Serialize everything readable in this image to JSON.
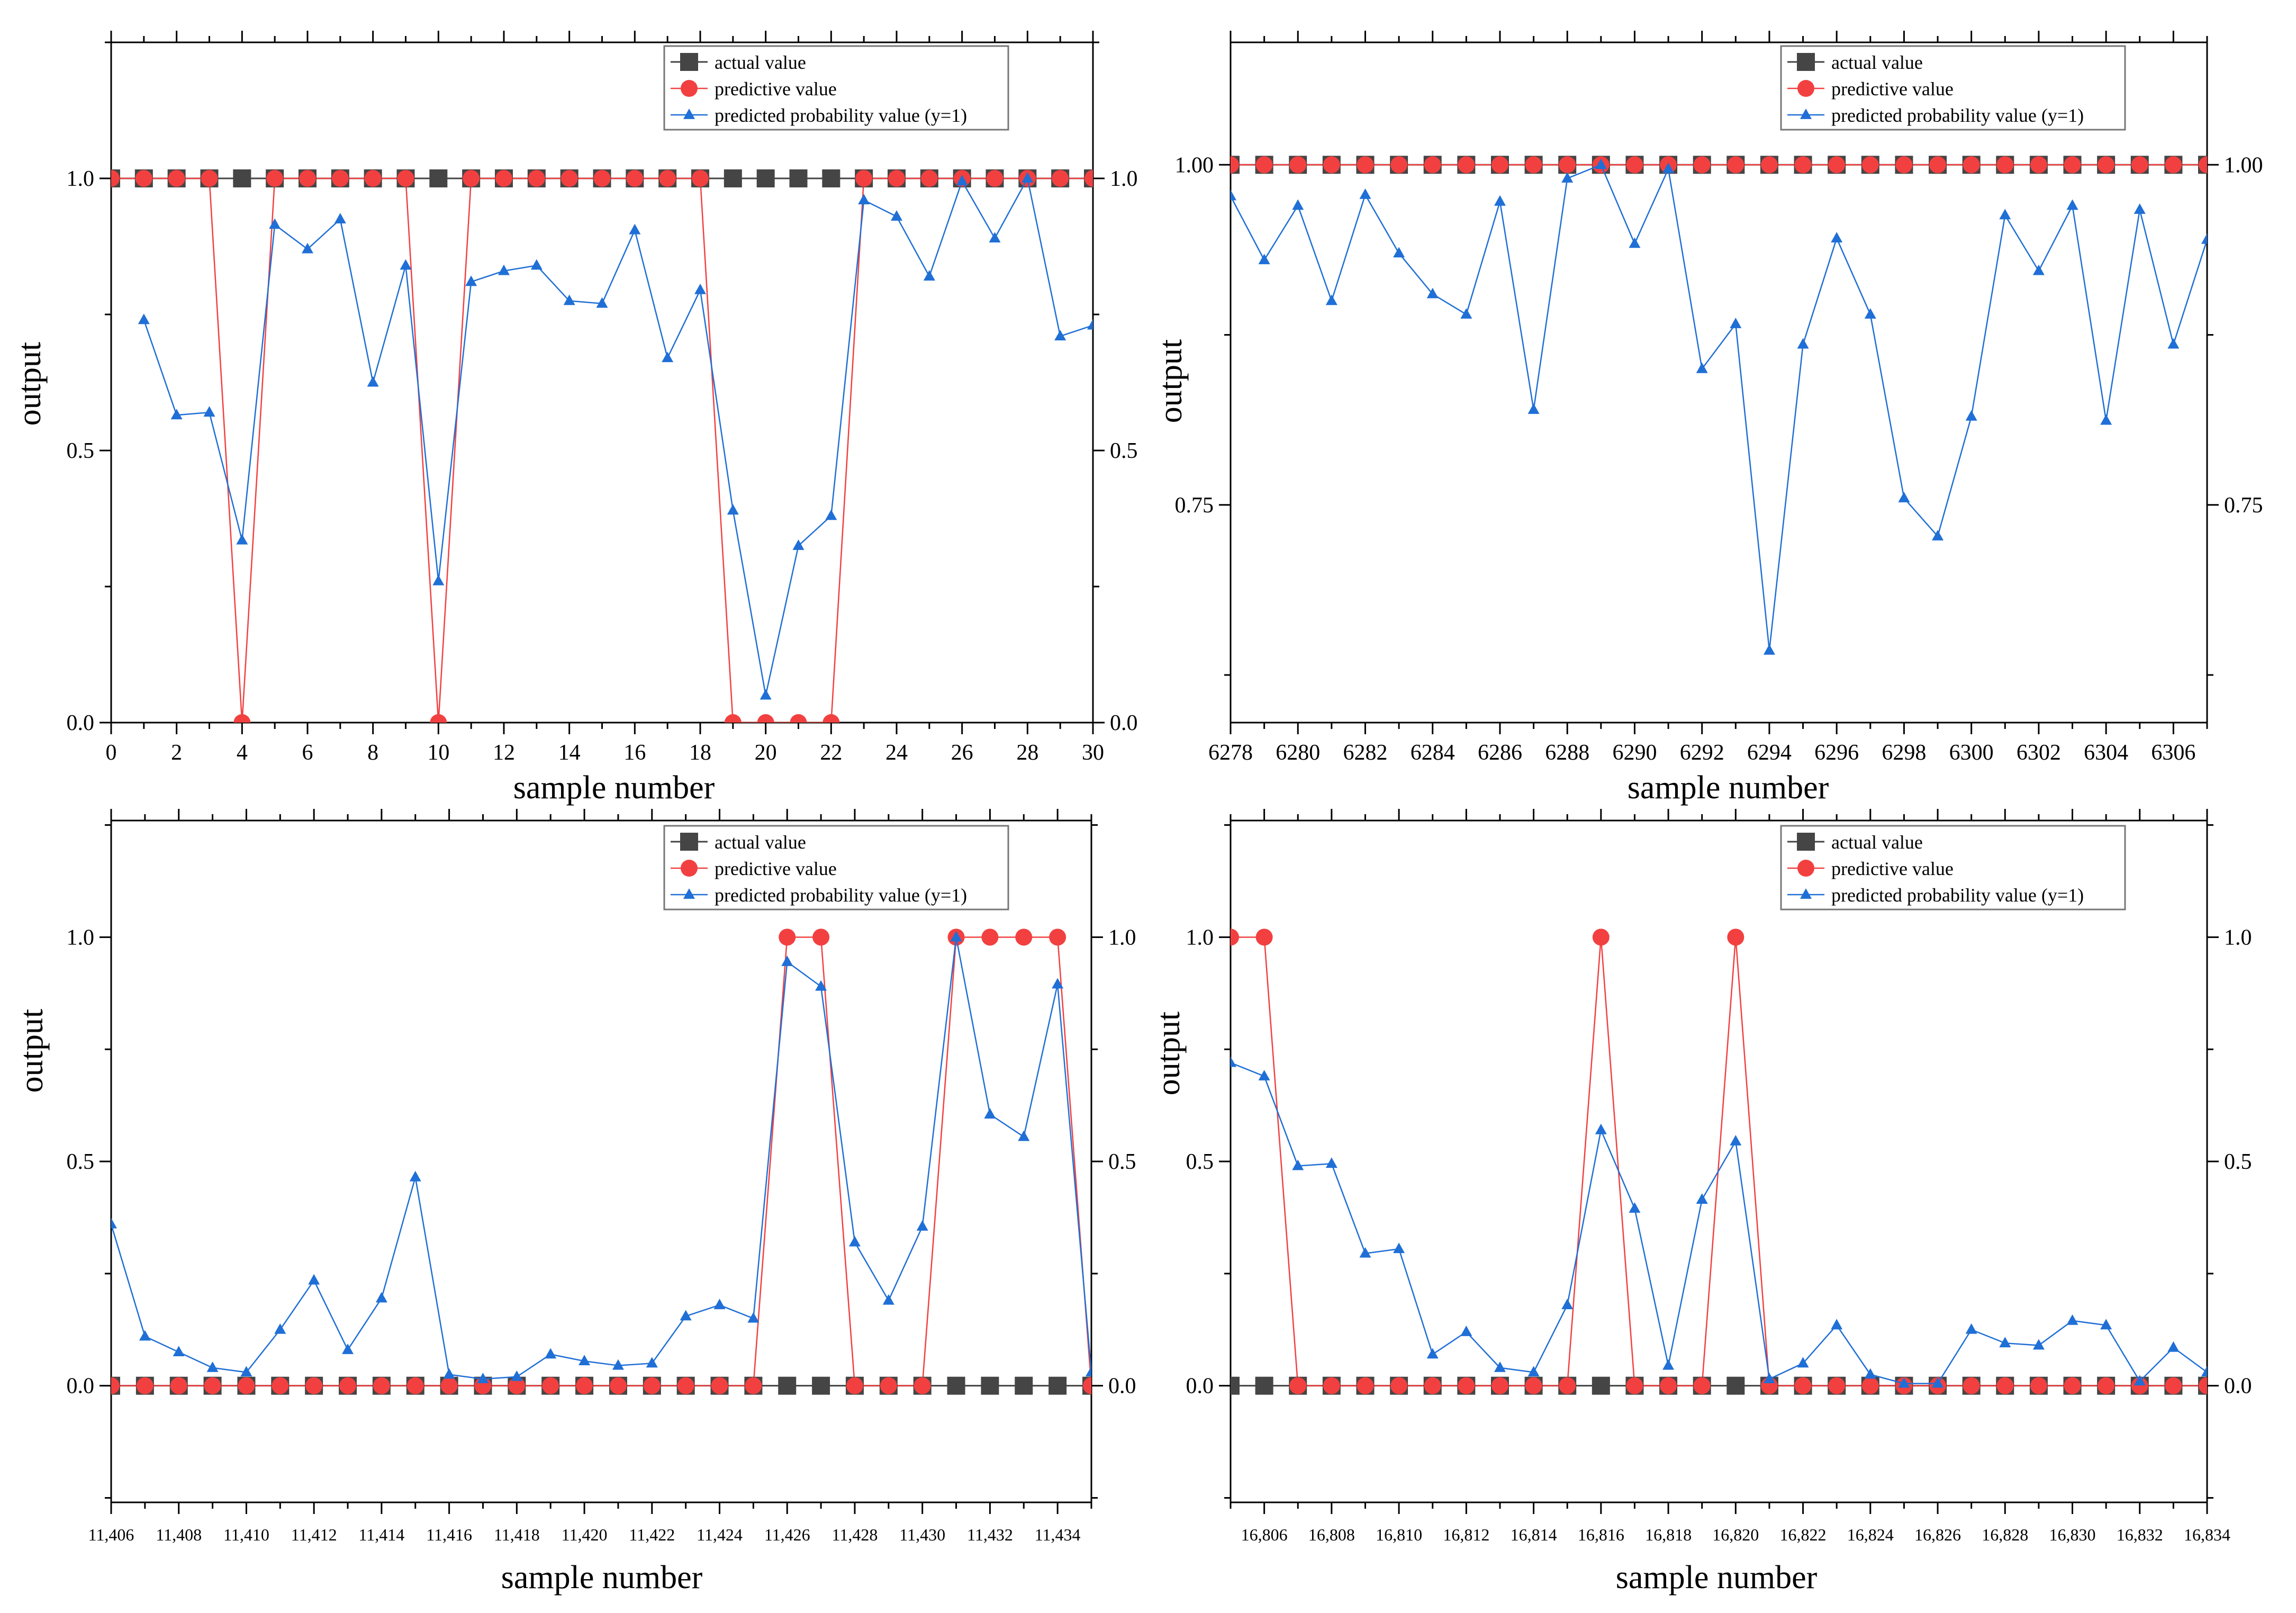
{
  "colors": {
    "actual": "#454545",
    "predictive": "#f24040",
    "probability": "#1f6fd6",
    "axis": "#000000"
  },
  "chart_data": [
    {
      "type": "line",
      "title": "",
      "xlabel": "sample number",
      "ylabel": "output",
      "x": [
        0,
        1,
        2,
        3,
        4,
        5,
        6,
        7,
        8,
        9,
        10,
        11,
        12,
        13,
        14,
        15,
        16,
        17,
        18,
        19,
        20,
        21,
        22,
        23,
        24,
        25,
        26,
        27,
        28,
        29,
        30
      ],
      "xlim": [
        0,
        30
      ],
      "ylim": [
        0,
        1.25
      ],
      "yticks": [
        0.0,
        0.5,
        1.0
      ],
      "ytick_labels": [
        "0.0",
        "0.5",
        "1.0"
      ],
      "xticks": [
        0,
        2,
        4,
        6,
        8,
        10,
        12,
        14,
        16,
        18,
        20,
        22,
        24,
        26,
        28,
        30
      ],
      "xtick_labels": [
        "0",
        "2",
        "4",
        "6",
        "8",
        "10",
        "12",
        "14",
        "16",
        "18",
        "20",
        "22",
        "24",
        "26",
        "28",
        "30"
      ],
      "legend": [
        "actual value",
        "predictive value",
        "predicted probability value (y=1)"
      ],
      "legend_position": "top-right",
      "series": [
        {
          "name": "actual value",
          "values": [
            1,
            1,
            1,
            1,
            1,
            1,
            1,
            1,
            1,
            1,
            1,
            1,
            1,
            1,
            1,
            1,
            1,
            1,
            1,
            1,
            1,
            1,
            1,
            1,
            1,
            1,
            1,
            1,
            1,
            1,
            1
          ]
        },
        {
          "name": "predictive value",
          "values": [
            1,
            1,
            1,
            1,
            0,
            1,
            1,
            1,
            1,
            1,
            0,
            1,
            1,
            1,
            1,
            1,
            1,
            1,
            1,
            0,
            0,
            0,
            0,
            1,
            1,
            1,
            1,
            1,
            1,
            1,
            1
          ]
        },
        {
          "name": "predicted probability value (y=1)",
          "values": [
            null,
            0.74,
            0.565,
            0.57,
            0.335,
            0.915,
            0.87,
            0.925,
            0.625,
            0.84,
            0.26,
            0.81,
            0.83,
            0.84,
            0.775,
            0.77,
            0.905,
            0.67,
            0.795,
            0.39,
            0.05,
            0.325,
            0.38,
            0.96,
            0.93,
            0.82,
            0.995,
            0.89,
            1.0,
            0.71,
            0.73
          ]
        }
      ]
    },
    {
      "type": "line",
      "title": "",
      "xlabel": "sample number",
      "ylabel": "output",
      "x": [
        6278,
        6279,
        6280,
        6281,
        6282,
        6283,
        6284,
        6285,
        6286,
        6287,
        6288,
        6289,
        6290,
        6291,
        6292,
        6293,
        6294,
        6295,
        6296,
        6297,
        6298,
        6299,
        6300,
        6301,
        6302,
        6303,
        6304,
        6305,
        6306,
        6307
      ],
      "xlim": [
        6278,
        6307
      ],
      "ylim": [
        0.59,
        1.09
      ],
      "yticks": [
        0.75,
        1.0
      ],
      "ytick_labels": [
        "0.75",
        "1.00"
      ],
      "xticks": [
        6278,
        6280,
        6282,
        6284,
        6286,
        6288,
        6290,
        6292,
        6294,
        6296,
        6298,
        6300,
        6302,
        6304,
        6306
      ],
      "xtick_labels": [
        "6278",
        "6280",
        "6282",
        "6284",
        "6286",
        "6288",
        "6290",
        "6292",
        "6294",
        "6296",
        "6298",
        "6300",
        "6302",
        "6304",
        "6306"
      ],
      "legend": [
        "actual value",
        "predictive value",
        "predicted probability value (y=1)"
      ],
      "legend_position": "top-right",
      "series": [
        {
          "name": "actual value",
          "values": [
            1,
            1,
            1,
            1,
            1,
            1,
            1,
            1,
            1,
            1,
            1,
            1,
            1,
            1,
            1,
            1,
            1,
            1,
            1,
            1,
            1,
            1,
            1,
            1,
            1,
            1,
            1,
            1,
            1,
            1
          ]
        },
        {
          "name": "predictive value",
          "values": [
            1,
            1,
            1,
            1,
            1,
            1,
            1,
            1,
            1,
            1,
            1,
            1,
            1,
            1,
            1,
            1,
            1,
            1,
            1,
            1,
            1,
            1,
            1,
            1,
            1,
            1,
            1,
            1,
            1,
            1
          ]
        },
        {
          "name": "predicted probability value (y=1)",
          "values": [
            0.977,
            0.93,
            0.97,
            0.9,
            0.978,
            0.935,
            0.905,
            0.89,
            0.973,
            0.82,
            0.99,
            1.0,
            0.942,
            0.997,
            0.85,
            0.883,
            0.643,
            0.868,
            0.946,
            0.89,
            0.755,
            0.727,
            0.815,
            0.963,
            0.922,
            0.97,
            0.812,
            0.967,
            0.868,
            0.945
          ]
        }
      ]
    },
    {
      "type": "line",
      "title": "",
      "xlabel": "sample number",
      "ylabel": "output",
      "x": [
        11406,
        11407,
        11408,
        11409,
        11410,
        11411,
        11412,
        11413,
        11414,
        11415,
        11416,
        11417,
        11418,
        11419,
        11420,
        11421,
        11422,
        11423,
        11424,
        11425,
        11426,
        11427,
        11428,
        11429,
        11430,
        11431,
        11432,
        11433,
        11434,
        11435
      ],
      "xlim": [
        11406,
        11435
      ],
      "ylim": [
        -0.26,
        1.26
      ],
      "yticks": [
        0.0,
        0.5,
        1.0
      ],
      "ytick_labels": [
        "0.0",
        "0.5",
        "1.0"
      ],
      "xticks": [
        11406,
        11408,
        11410,
        11412,
        11414,
        11416,
        11418,
        11420,
        11422,
        11424,
        11426,
        11428,
        11430,
        11432,
        11434
      ],
      "xtick_labels": [
        "11,406",
        "11,408",
        "11,410",
        "11,412",
        "11,414",
        "11,416",
        "11,418",
        "11,420",
        "11,422",
        "11,424",
        "11,426",
        "11,428",
        "11,430",
        "11,432",
        "11,434"
      ],
      "legend": [
        "actual value",
        "predictive value",
        "predicted probability value (y=1)"
      ],
      "legend_position": "top-right",
      "series": [
        {
          "name": "actual value",
          "values": [
            0,
            0,
            0,
            0,
            0,
            0,
            0,
            0,
            0,
            0,
            0,
            0,
            0,
            0,
            0,
            0,
            0,
            0,
            0,
            0,
            0,
            0,
            0,
            0,
            0,
            0,
            0,
            0,
            0,
            0
          ]
        },
        {
          "name": "predictive value",
          "values": [
            0,
            0,
            0,
            0,
            0,
            0,
            0,
            0,
            0,
            0,
            0,
            0,
            0,
            0,
            0,
            0,
            0,
            0,
            0,
            0,
            1,
            1,
            0,
            0,
            0,
            1,
            1,
            1,
            1,
            0
          ]
        },
        {
          "name": "predicted probability value (y=1)",
          "values": [
            0.36,
            0.11,
            0.075,
            0.04,
            0.03,
            0.125,
            0.235,
            0.08,
            0.195,
            0.465,
            0.025,
            0.015,
            0.02,
            0.07,
            0.055,
            0.045,
            0.05,
            0.155,
            0.18,
            0.15,
            0.945,
            0.89,
            0.32,
            0.19,
            0.355,
            1.0,
            0.605,
            0.555,
            0.895,
            0.03
          ]
        }
      ]
    },
    {
      "type": "line",
      "title": "",
      "xlabel": "sample number",
      "ylabel": "output",
      "x": [
        16805,
        16806,
        16807,
        16808,
        16809,
        16810,
        16811,
        16812,
        16813,
        16814,
        16815,
        16816,
        16817,
        16818,
        16819,
        16820,
        16821,
        16822,
        16823,
        16824,
        16825,
        16826,
        16827,
        16828,
        16829,
        16830,
        16831,
        16832,
        16833,
        16834
      ],
      "xlim": [
        16805,
        16834
      ],
      "ylim": [
        -0.26,
        1.26
      ],
      "yticks": [
        0.0,
        0.5,
        1.0
      ],
      "ytick_labels": [
        "0.0",
        "0.5",
        "1.0"
      ],
      "xticks": [
        16806,
        16808,
        16810,
        16812,
        16814,
        16816,
        16818,
        16820,
        16822,
        16824,
        16826,
        16828,
        16830,
        16832,
        16834
      ],
      "xtick_labels": [
        "16,806",
        "16,808",
        "16,810",
        "16,812",
        "16,814",
        "16,816",
        "16,818",
        "16,820",
        "16,822",
        "16,824",
        "16,826",
        "16,828",
        "16,830",
        "16,832",
        "16,834"
      ],
      "legend": [
        "actual value",
        "predictive value",
        "predicted probability value (y=1)"
      ],
      "legend_position": "top-right",
      "series": [
        {
          "name": "actual value",
          "values": [
            0,
            0,
            0,
            0,
            0,
            0,
            0,
            0,
            0,
            0,
            0,
            0,
            0,
            0,
            0,
            0,
            0,
            0,
            0,
            0,
            0,
            0,
            0,
            0,
            0,
            0,
            0,
            0,
            0,
            0
          ]
        },
        {
          "name": "predictive value",
          "values": [
            1,
            1,
            0,
            0,
            0,
            0,
            0,
            0,
            0,
            0,
            0,
            1,
            0,
            0,
            0,
            1,
            0,
            0,
            0,
            0,
            0,
            0,
            0,
            0,
            0,
            0,
            0,
            0,
            0,
            0
          ]
        },
        {
          "name": "predicted probability value (y=1)",
          "values": [
            0.72,
            0.69,
            0.49,
            0.495,
            0.295,
            0.305,
            0.07,
            0.12,
            0.04,
            0.03,
            0.18,
            0.57,
            0.395,
            0.045,
            0.415,
            0.545,
            0.015,
            0.05,
            0.135,
            0.025,
            0.005,
            0.005,
            0.125,
            0.095,
            0.09,
            0.145,
            0.135,
            0.01,
            0.085,
            0.03
          ]
        }
      ]
    }
  ]
}
